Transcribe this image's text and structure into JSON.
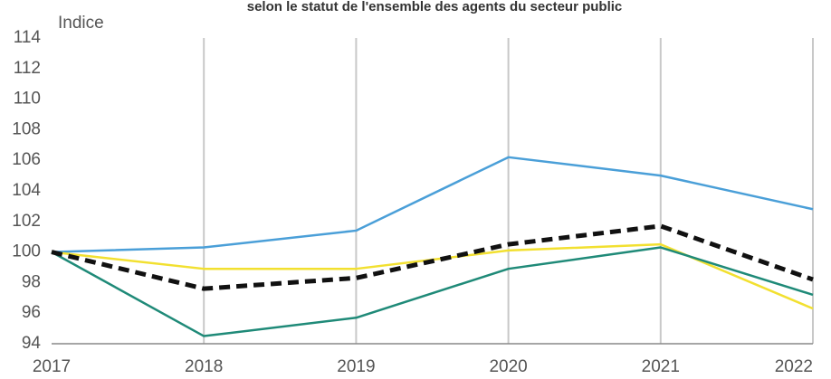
{
  "chart_data": {
    "type": "line",
    "title": "selon le statut de l'ensemble des agents du secteur public",
    "y_label": "Indice",
    "categories": [
      "2017",
      "2018",
      "2019",
      "2020",
      "2021",
      "2022"
    ],
    "series": [
      {
        "color": "#4a9fd8",
        "line_style": "solid",
        "values": [
          100,
          100.3,
          101.4,
          106.2,
          105,
          102.8
        ]
      },
      {
        "color": "#f2e030",
        "line_style": "solid",
        "values": [
          100,
          98.9,
          98.9,
          100.1,
          100.5,
          96.3
        ]
      },
      {
        "color": "#1f8a78",
        "line_style": "solid",
        "values": [
          100,
          94.5,
          95.7,
          98.9,
          100.3,
          97.2
        ]
      },
      {
        "color": "#111111",
        "line_style": "dashed",
        "values": [
          100,
          97.6,
          98.3,
          100.5,
          101.7,
          98.2
        ]
      }
    ],
    "ylim": [
      94,
      114
    ],
    "yticks": [
      94,
      96,
      98,
      100,
      102,
      104,
      106,
      108,
      110,
      112,
      114
    ],
    "grid": "x"
  }
}
